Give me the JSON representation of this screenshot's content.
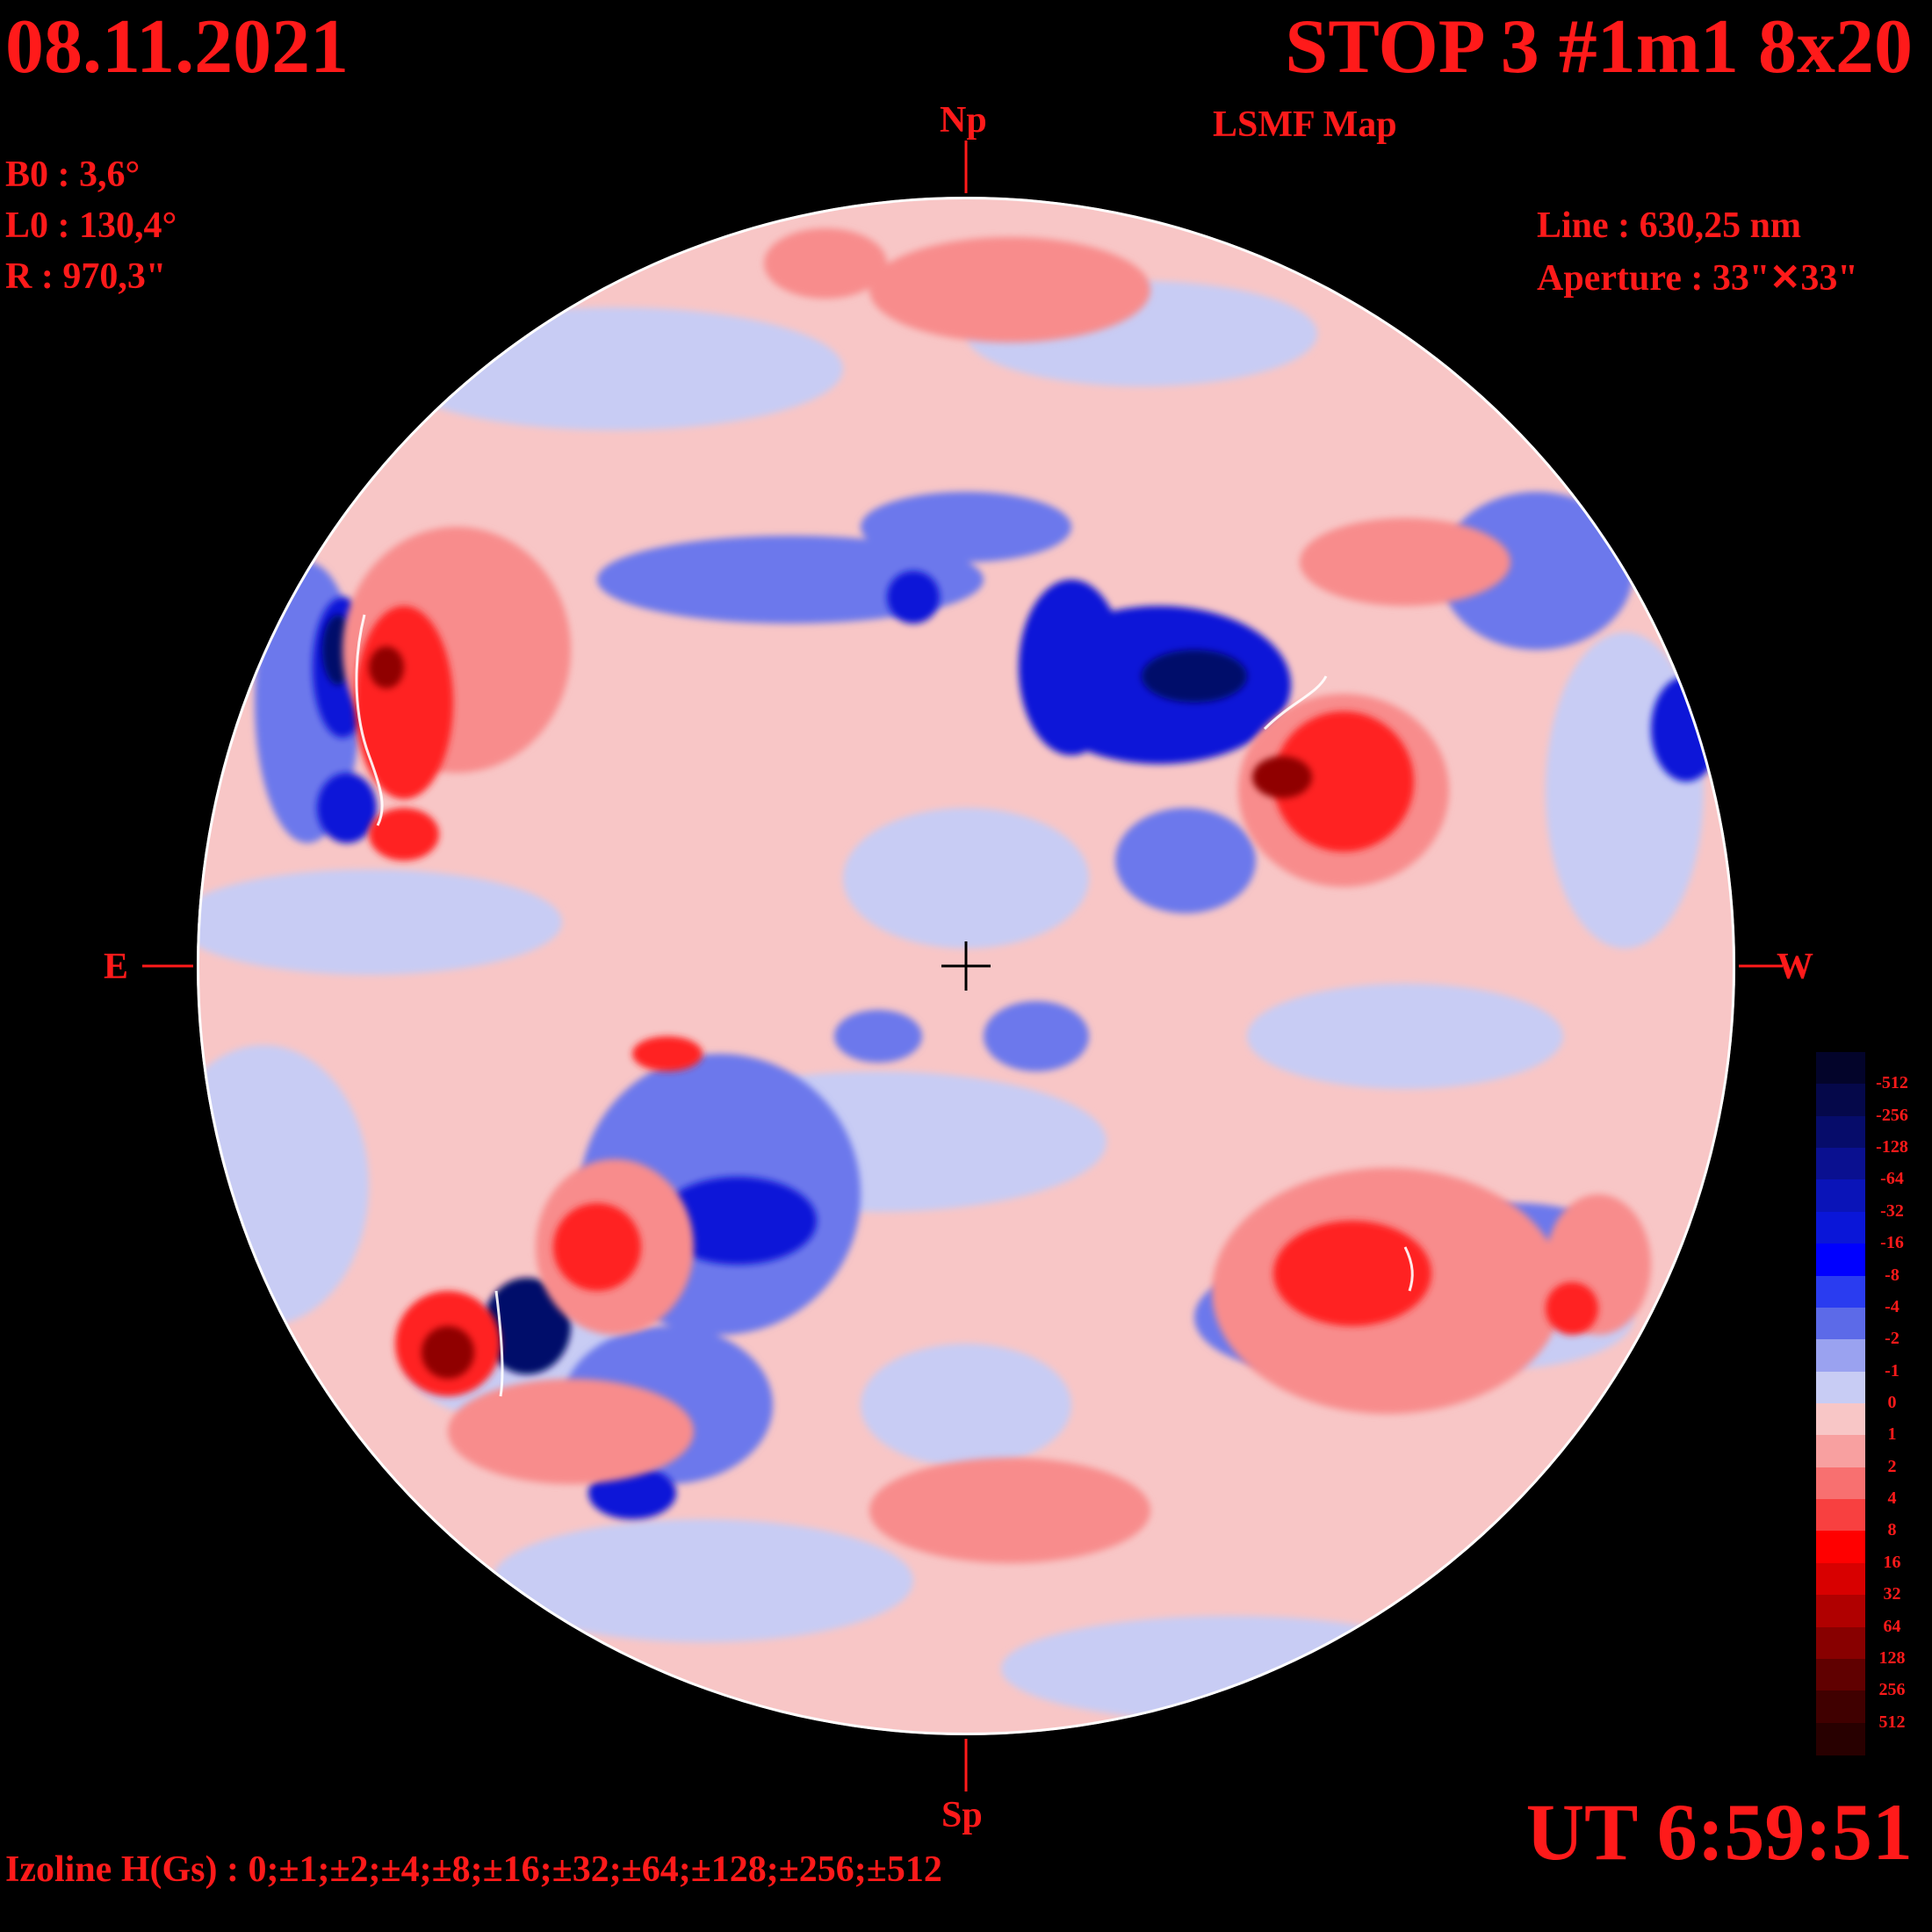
{
  "header": {
    "date": "08.11.2021",
    "title": "STOP 3 #1m1 8x20",
    "subtitle": "LSMF  Map"
  },
  "params": {
    "b0": "B0 : 3,6°",
    "l0": "L0 : 130,4°",
    "r": "R  : 970,3\""
  },
  "instrument": {
    "line": "Line :  630,25 nm",
    "aperture": "Aperture : 33\"✕33\""
  },
  "orientation": {
    "north": "Np",
    "south": "Sp",
    "east": "E",
    "west": "W"
  },
  "time": "UT 6:59:51",
  "izoline": "Izoline H(Gs) : 0;±1;±2;±4;±8;±16;±32;±64;±128;±256;±512",
  "colors": {
    "background": "#000000",
    "text": "#ff1a1a",
    "contour": "#ffffff"
  },
  "legend": {
    "labels": [
      "-512",
      "-256",
      "-128",
      "-64",
      "-32",
      "-16",
      "-8",
      "-4",
      "-2",
      "-1",
      "0",
      "1",
      "2",
      "4",
      "8",
      "16",
      "32",
      "64",
      "128",
      "256",
      "512"
    ],
    "colors": [
      "#03042a",
      "#05084a",
      "#060c6a",
      "#0a1090",
      "#0a14b8",
      "#0a16d8",
      "#0000ff",
      "#2a3cf0",
      "#5c6ae8",
      "#9aa2f0",
      "#c8ccf4",
      "#f8c6c6",
      "#f8a0a0",
      "#f87070",
      "#f84040",
      "#ff0000",
      "#d80000",
      "#b00000",
      "#880000",
      "#600000",
      "#400000",
      "#280000"
    ]
  }
}
